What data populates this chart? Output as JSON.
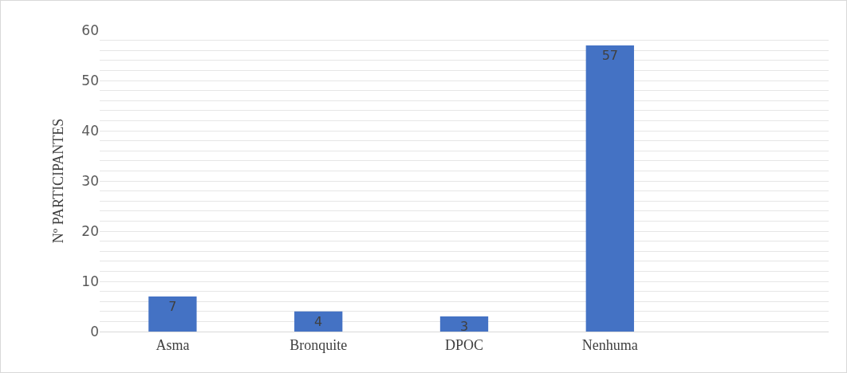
{
  "chart_data": {
    "type": "bar",
    "ylabel": "Nº PARTICIPANTES",
    "categories": [
      "Asma",
      "Bronquite",
      "DPOC",
      "Nenhuma",
      null
    ],
    "values": [
      7,
      4,
      3,
      57,
      null
    ],
    "color": "#4472c4",
    "data_labels": true,
    "ylim": [
      0,
      60
    ],
    "yticks": [
      0,
      {
        "value": 2,
        "label": null
      },
      {
        "value": 4,
        "label": null
      },
      {
        "value": 6,
        "label": null
      },
      {
        "value": 8,
        "label": null
      },
      10,
      {
        "value": 12,
        "label": null
      },
      {
        "value": 14,
        "label": null
      },
      {
        "value": 16,
        "label": null
      },
      {
        "value": 18,
        "label": null
      },
      20,
      {
        "value": 22,
        "label": null
      },
      {
        "value": 24,
        "label": null
      },
      {
        "value": 26,
        "label": null
      },
      {
        "value": 28,
        "label": null
      },
      30,
      {
        "value": 32,
        "label": null
      },
      {
        "value": 34,
        "label": null
      },
      {
        "value": 36,
        "label": null
      },
      {
        "value": 38,
        "label": null
      },
      40,
      {
        "value": 42,
        "label": null
      },
      {
        "value": 44,
        "label": null
      },
      {
        "value": 46,
        "label": null
      },
      {
        "value": 48,
        "label": null
      },
      50,
      {
        "value": 52,
        "label": null
      },
      {
        "value": 54,
        "label": null
      },
      {
        "value": 56,
        "label": null
      },
      {
        "value": 58,
        "label": null
      },
      60
    ],
    "grid": "y"
  }
}
